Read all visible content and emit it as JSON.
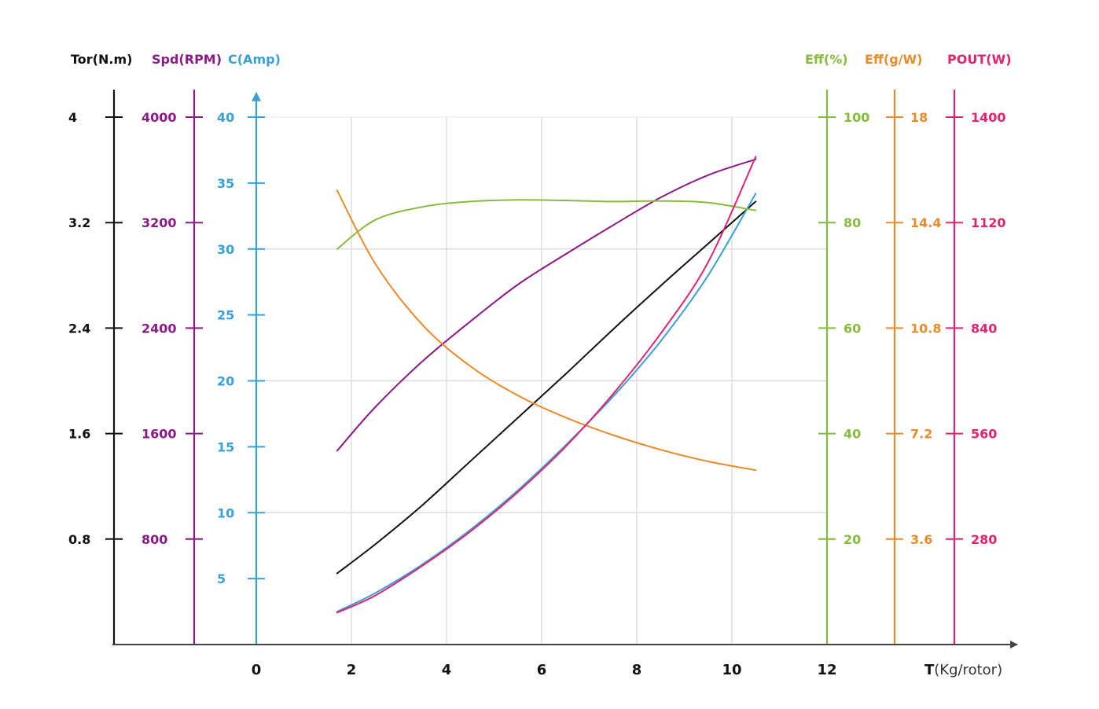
{
  "chart_data": {
    "type": "line",
    "x_axis": {
      "label": "T",
      "unit": "(Kg/rotor)",
      "range": [
        0,
        12
      ],
      "ticks": [
        "0",
        "2",
        "4",
        "6",
        "8",
        "10",
        "12"
      ]
    },
    "grid": true,
    "axes": [
      {
        "id": "tor",
        "title": "Tor(N.m)",
        "color": "#111111",
        "range": [
          0,
          4
        ],
        "ticks": [
          "0.8",
          "1.6",
          "2.4",
          "3.2",
          "4"
        ]
      },
      {
        "id": "spd",
        "title": "Spd(RPM)",
        "color": "#8a1a86",
        "range": [
          0,
          4000
        ],
        "ticks": [
          "800",
          "1600",
          "2400",
          "3200",
          "4000"
        ]
      },
      {
        "id": "cur",
        "title": "C(Amp)",
        "color": "#3aa0d6",
        "range": [
          0,
          40
        ],
        "ticks": [
          "5",
          "10",
          "15",
          "20",
          "25",
          "30",
          "35",
          "40"
        ]
      },
      {
        "id": "effp",
        "title": "Eff(%)",
        "color": "#86bc3d",
        "range": [
          0,
          100
        ],
        "ticks": [
          "20",
          "40",
          "60",
          "80",
          "100"
        ]
      },
      {
        "id": "effg",
        "title": "Eff(g/W)",
        "color": "#ea8b2c",
        "range": [
          0,
          18
        ],
        "ticks": [
          "3.6",
          "7.2",
          "10.8",
          "14.4",
          "18"
        ]
      },
      {
        "id": "pout",
        "title": "POUT(W)",
        "color": "#e2246f",
        "range": [
          0,
          1400
        ],
        "ticks": [
          "280",
          "560",
          "840",
          "1120",
          "1400"
        ]
      }
    ],
    "series": [
      {
        "axis": "tor",
        "color": "#111111",
        "x": [
          1.7,
          2.5,
          3.5,
          4.5,
          5.5,
          6.5,
          7.5,
          8.5,
          9.5,
          10.5
        ],
        "y": [
          0.54,
          0.76,
          1.06,
          1.39,
          1.72,
          2.05,
          2.39,
          2.72,
          3.04,
          3.36
        ]
      },
      {
        "axis": "spd",
        "color": "#8a1a86",
        "x": [
          1.7,
          2.5,
          3.5,
          4.5,
          5.5,
          6.5,
          7.5,
          8.5,
          9.5,
          10.5
        ],
        "y": [
          1470,
          1800,
          2150,
          2450,
          2730,
          2960,
          3180,
          3390,
          3560,
          3680
        ]
      },
      {
        "axis": "cur",
        "color": "#3aa0d6",
        "x": [
          1.7,
          2.5,
          3.5,
          4.5,
          5.5,
          6.5,
          7.5,
          8.5,
          9.5,
          10.5
        ],
        "y": [
          2.5,
          3.9,
          6.1,
          8.7,
          11.7,
          15.1,
          18.8,
          23.0,
          28.0,
          34.2
        ]
      },
      {
        "axis": "effp",
        "color": "#86bc3d",
        "x": [
          1.7,
          2.5,
          3.5,
          4.5,
          5.5,
          6.5,
          7.5,
          8.5,
          9.5,
          10.5
        ],
        "y": [
          75,
          80.5,
          83,
          84,
          84.3,
          84.2,
          84,
          84.1,
          83.8,
          82.3
        ]
      },
      {
        "axis": "effg",
        "color": "#ea8b2c",
        "x": [
          1.7,
          2.5,
          3.5,
          4.5,
          5.5,
          6.5,
          7.5,
          8.5,
          9.5,
          10.5
        ],
        "y": [
          15.5,
          13.0,
          10.9,
          9.5,
          8.5,
          7.75,
          7.15,
          6.65,
          6.25,
          5.95
        ]
      },
      {
        "axis": "pout",
        "color": "#e2246f",
        "x": [
          1.7,
          2.5,
          3.5,
          4.5,
          5.5,
          6.5,
          7.5,
          8.5,
          9.5,
          10.5
        ],
        "y": [
          85,
          130,
          210,
          300,
          405,
          525,
          665,
          825,
          1015,
          1295
        ]
      }
    ]
  }
}
